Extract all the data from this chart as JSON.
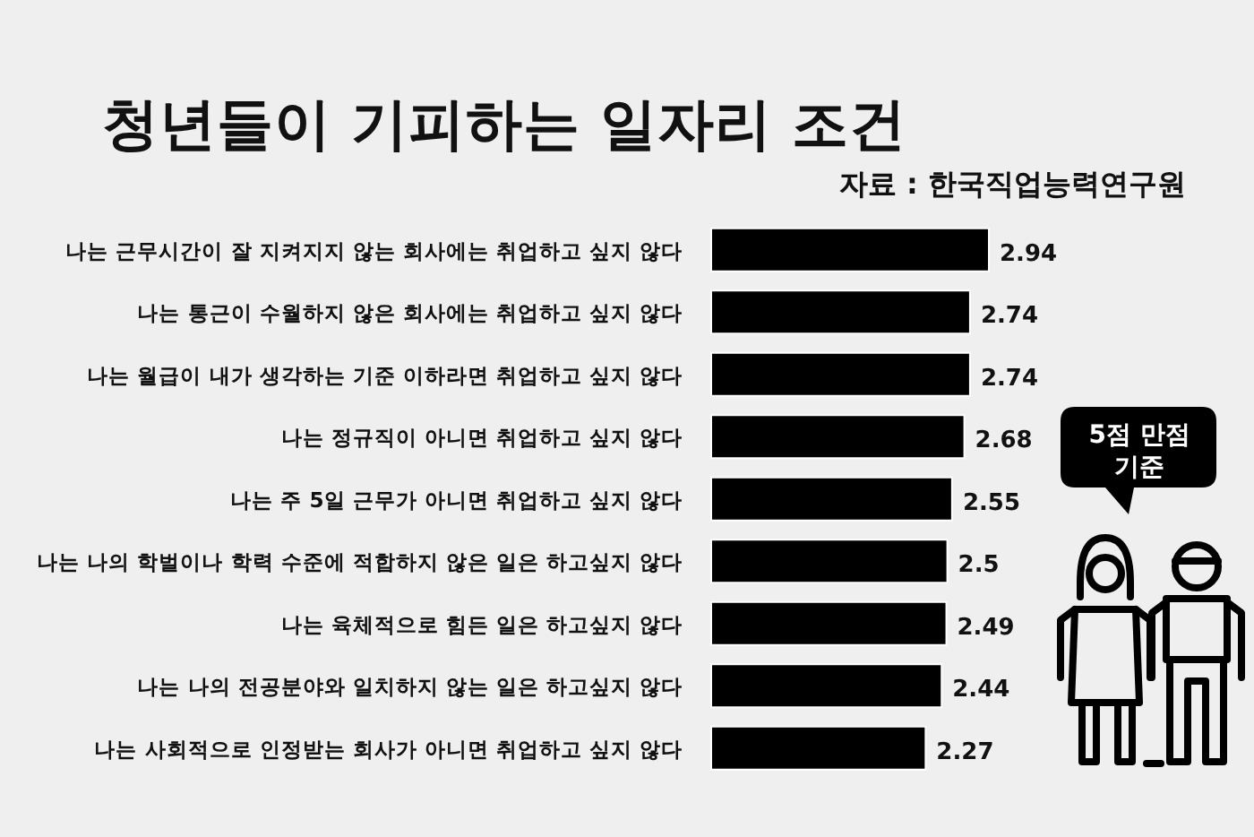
{
  "chart_data": {
    "type": "bar",
    "orientation": "horizontal",
    "title": "청년들이 기피하는 일자리 조건",
    "annotations": [
      "자료 : 한국직업능력연구원",
      "5점 만점\n기준"
    ],
    "categories": [
      "나는 근무시간이 잘 지켜지지 않는 회사에는 취업하고 싶지 않다",
      "나는 통근이 수월하지 않은 회사에는 취업하고 싶지 않다",
      "나는 월급이 내가 생각하는 기준 이하라면 취업하고 싶지 않다",
      "나는 정규직이 아니면 취업하고 싶지 않다",
      "나는 주 5일 근무가 아니면 취업하고 싶지 않다",
      "나는 나의 학벌이나 학력 수준에 적합하지 않은 일은 하고싶지 않다",
      "나는 육체적으로 힘든 일은 하고싶지 않다",
      "나는 나의 전공분야와 일치하지 않는 일은 하고싶지 않다",
      "나는 사회적으로 인정받는 회사가 아니면 취업하고 싶지 않다"
    ],
    "values": [
      2.94,
      2.74,
      2.74,
      2.68,
      2.55,
      2.5,
      2.49,
      2.44,
      2.27
    ],
    "color": "#000000",
    "data_labels": true
  }
}
